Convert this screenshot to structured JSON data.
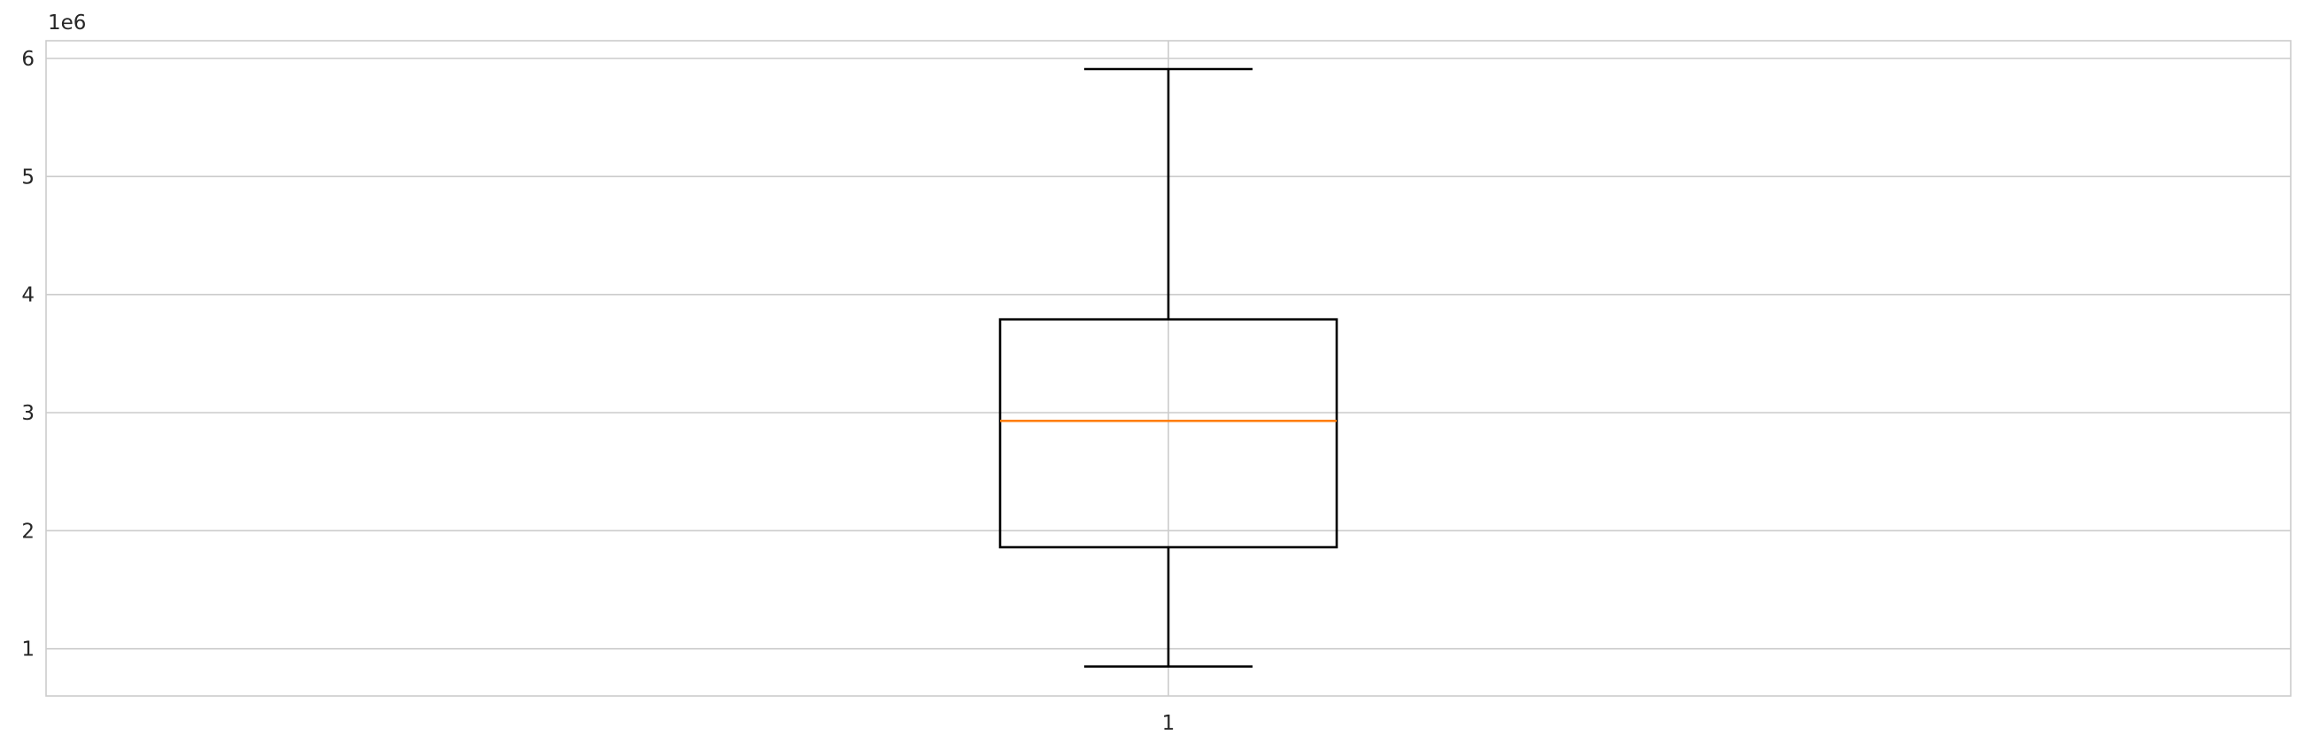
{
  "chart_data": {
    "type": "box",
    "title": "",
    "xlabel": "",
    "ylabel": "",
    "y_offset_label": "1e6",
    "y_scale": 1000000,
    "ylim": [
      0.6,
      6.15
    ],
    "grid": true,
    "colors": {
      "background": "#ffffff",
      "grid": "#cccccc",
      "spine": "#cccccc",
      "box": "#000000",
      "median": "#ff7f0e",
      "text": "#262626"
    },
    "y_ticks": [
      1,
      2,
      3,
      4,
      5,
      6
    ],
    "x_ticks": [
      "1"
    ],
    "boxes": [
      {
        "position": 1,
        "label": "1",
        "whisker_low": 0.85,
        "q1": 1.86,
        "median": 2.93,
        "q3": 3.79,
        "whisker_high": 5.91
      }
    ]
  }
}
